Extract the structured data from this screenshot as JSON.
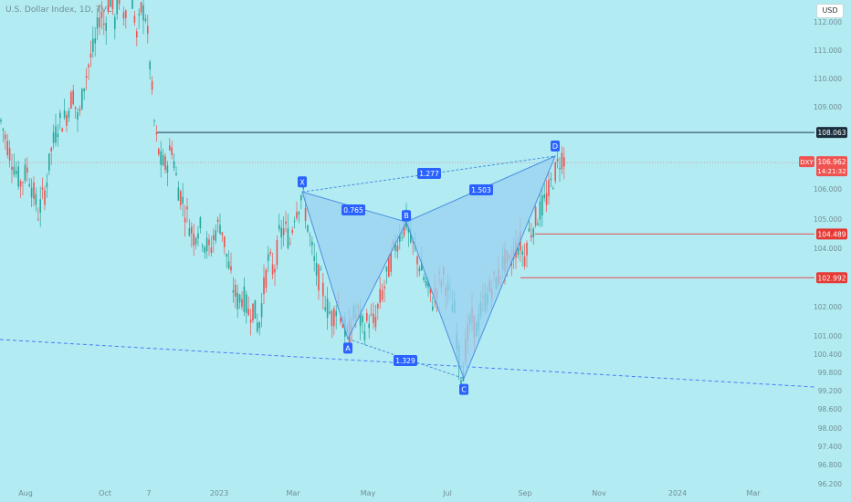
{
  "header": {
    "title": "U.S. Dollar Index, 1D, TVC"
  },
  "currency_button": "USD",
  "colors": {
    "background": "#b3ebf2",
    "bull": "#26a69a",
    "bear": "#ef5350",
    "pattern_fill": "#9ad1f0",
    "pattern_stroke": "#4a90e2",
    "label_bg": "#2962ff",
    "trend_line": "#2962ff",
    "resistance": "#1c3a4a",
    "support": "#e05050"
  },
  "chart_data": {
    "type": "candlestick",
    "symbol": "DXY",
    "y_axis_ticks": [
      112.0,
      111.0,
      110.0,
      109.0,
      106.0,
      105.0,
      104.0,
      102.0,
      101.0,
      100.4,
      99.8,
      99.2,
      98.6,
      98.0,
      97.4,
      96.8,
      96.2
    ],
    "y_axis_tick_labels": [
      "112.000",
      "111.000",
      "110.000",
      "109.000",
      "106.000",
      "105.000",
      "104.000",
      "102.000",
      "101.000",
      "100.400",
      "99.800",
      "99.200",
      "98.600",
      "98.000",
      "97.400",
      "96.800",
      "96.200"
    ],
    "x_axis_labels": [
      "Aug",
      "Oct",
      "7",
      "2023",
      "Mar",
      "May",
      "Jul",
      "Sep",
      "Nov",
      "2024",
      "Mar"
    ],
    "current_price": {
      "label": "DXY",
      "value": "106.962",
      "countdown": "14:21:32"
    },
    "horizontal_levels": [
      {
        "value": 108.063,
        "label": "108.063",
        "kind": "resistance"
      },
      {
        "value": 104.489,
        "label": "104.489",
        "kind": "support"
      },
      {
        "value": 102.992,
        "label": "102.992",
        "kind": "support"
      }
    ],
    "harmonic_pattern": {
      "points": [
        {
          "name": "X",
          "price": 105.9
        },
        {
          "name": "A",
          "price": 100.9
        },
        {
          "name": "B",
          "price": 104.9
        },
        {
          "name": "C",
          "price": 99.6
        },
        {
          "name": "D",
          "price": 107.2
        }
      ],
      "ratios": [
        {
          "label": "0.765",
          "between": "XA-AB"
        },
        {
          "label": "1.503",
          "between": "BC-CD"
        },
        {
          "label": "1.277",
          "between": "XA-XD"
        },
        {
          "label": "1.329",
          "between": "AB-BC"
        }
      ]
    },
    "price_path": [
      [
        0,
        108.6
      ],
      [
        10,
        107.4
      ],
      [
        22,
        106.2
      ],
      [
        30,
        106.7
      ],
      [
        42,
        105.2
      ],
      [
        50,
        106.0
      ],
      [
        56,
        107.4
      ],
      [
        64,
        108.4
      ],
      [
        72,
        108.6
      ],
      [
        80,
        109.5
      ],
      [
        86,
        108.4
      ],
      [
        92,
        109.8
      ],
      [
        98,
        110.6
      ],
      [
        104,
        111.2
      ],
      [
        110,
        112.4
      ],
      [
        115,
        111.8
      ],
      [
        120,
        113.0
      ],
      [
        126,
        112.0
      ],
      [
        132,
        113.2
      ],
      [
        136,
        112.2
      ],
      [
        142,
        113.4
      ],
      [
        146,
        112.6
      ],
      [
        150,
        111.4
      ],
      [
        155,
        112.5
      ],
      [
        160,
        112.2
      ],
      [
        165,
        110.2
      ],
      [
        170,
        108.0
      ],
      [
        176,
        107.0
      ],
      [
        182,
        106.8
      ],
      [
        188,
        107.6
      ],
      [
        194,
        106.2
      ],
      [
        200,
        105.6
      ],
      [
        206,
        105.0
      ],
      [
        212,
        104.4
      ],
      [
        218,
        104.8
      ],
      [
        224,
        104.2
      ],
      [
        230,
        103.9
      ],
      [
        236,
        104.6
      ],
      [
        242,
        104.9
      ],
      [
        248,
        103.8
      ],
      [
        254,
        102.8
      ],
      [
        260,
        102.2
      ],
      [
        266,
        102.4
      ],
      [
        272,
        101.8
      ],
      [
        278,
        102.0
      ],
      [
        283,
        101.2
      ],
      [
        288,
        102.4
      ],
      [
        294,
        103.6
      ],
      [
        300,
        103.2
      ],
      [
        306,
        104.4
      ],
      [
        312,
        104.7
      ],
      [
        318,
        104.2
      ],
      [
        322,
        105.2
      ],
      [
        327,
        105.5
      ],
      [
        331,
        105.9
      ],
      [
        336,
        105.0
      ],
      [
        340,
        104.2
      ],
      [
        346,
        103.2
      ],
      [
        352,
        102.8
      ],
      [
        358,
        102.0
      ],
      [
        364,
        101.6
      ],
      [
        370,
        102.2
      ],
      [
        376,
        101.4
      ],
      [
        381,
        100.9
      ],
      [
        386,
        101.6
      ],
      [
        392,
        101.8
      ],
      [
        398,
        101.2
      ],
      [
        404,
        101.6
      ],
      [
        410,
        101.4
      ],
      [
        416,
        102.2
      ],
      [
        422,
        102.8
      ],
      [
        428,
        103.6
      ],
      [
        434,
        104.2
      ],
      [
        440,
        104.6
      ],
      [
        445,
        104.9
      ],
      [
        450,
        104.2
      ],
      [
        456,
        103.8
      ],
      [
        462,
        103.2
      ],
      [
        468,
        102.6
      ],
      [
        474,
        102.2
      ],
      [
        480,
        102.8
      ],
      [
        486,
        103.0
      ],
      [
        492,
        102.4
      ],
      [
        498,
        101.8
      ],
      [
        502,
        100.4
      ],
      [
        506,
        99.6
      ],
      [
        510,
        100.6
      ],
      [
        516,
        101.6
      ],
      [
        522,
        101.2
      ],
      [
        528,
        102.0
      ],
      [
        534,
        102.4
      ],
      [
        540,
        102.8
      ],
      [
        546,
        103.0
      ],
      [
        552,
        103.6
      ],
      [
        558,
        103.4
      ],
      [
        564,
        104.0
      ],
      [
        570,
        104.2
      ],
      [
        574,
        103.6
      ],
      [
        578,
        104.4
      ],
      [
        584,
        104.8
      ],
      [
        590,
        105.2
      ],
      [
        596,
        105.5
      ],
      [
        602,
        106.0
      ],
      [
        607,
        106.5
      ],
      [
        612,
        107.0
      ],
      [
        616,
        107.2
      ],
      [
        620,
        106.962
      ]
    ]
  }
}
